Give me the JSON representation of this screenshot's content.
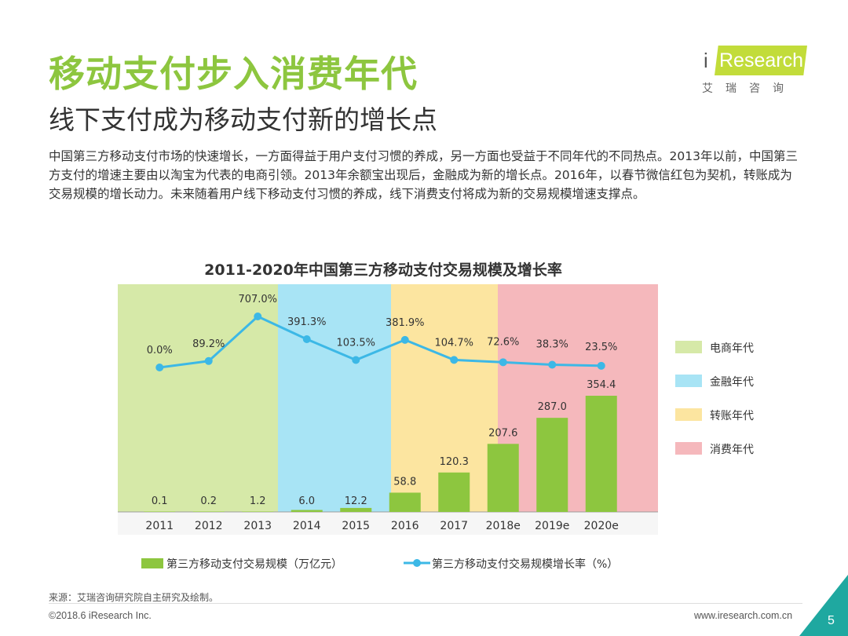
{
  "header": {
    "title": "移动支付步入消费年代",
    "subtitle": "线下支付成为移动支付新的增长点",
    "logo": {
      "brand": "Research",
      "brand_i": "i",
      "chinese": "艾瑞咨询",
      "color": "#c2dc3a"
    }
  },
  "intro_text": "中国第三方移动支付市场的快速增长，一方面得益于用户支付习惯的养成，另一方面也受益于不同年代的不同热点。2013年以前，中国第三方支付的增速主要由以淘宝为代表的电商引领。2013年余额宝出现后，金融成为新的增长点。2016年，以春节微信红包为契机，转账成为交易规模的增长动力。未来随着用户线下移动支付习惯的养成，线下消费支付将成为新的交易规模增速支撑点。",
  "chart_data": {
    "type": "bar",
    "title": "2011-2020年中国第三方移动支付交易规模及增长率",
    "categories": [
      "2011",
      "2012",
      "2013",
      "2014",
      "2015",
      "2016",
      "2017",
      "2018e",
      "2019e",
      "2020e"
    ],
    "series": [
      {
        "name": "第三方移动支付交易规模（万亿元）",
        "type": "bar",
        "color": "#8dc63f",
        "values": [
          0.1,
          0.2,
          1.2,
          6.0,
          12.2,
          58.8,
          120.3,
          207.6,
          287.0,
          354.4
        ],
        "labels": [
          "0.1",
          "0.2",
          "1.2",
          "6.0",
          "12.2",
          "58.8",
          "120.3",
          "207.6",
          "287.0",
          "354.4"
        ]
      },
      {
        "name": "第三方移动支付交易规模增长率（%）",
        "type": "line",
        "color": "#3cb8e6",
        "values": [
          0.0,
          89.2,
          707.0,
          391.3,
          103.5,
          381.9,
          104.7,
          72.6,
          38.3,
          23.5
        ],
        "labels": [
          "0.0%",
          "89.2%",
          "707.0%",
          "391.3%",
          "103.5%",
          "381.9%",
          "104.7%",
          "72.6%",
          "38.3%",
          "23.5%"
        ]
      }
    ],
    "eras": [
      {
        "name": "电商年代",
        "color": "#d6e9a8",
        "from_index": 0,
        "to_index": 2
      },
      {
        "name": "金融年代",
        "color": "#a8e4f5",
        "from_index": 2,
        "to_index": 4
      },
      {
        "name": "转账年代",
        "color": "#fce5a0",
        "from_index": 4,
        "to_index": 6
      },
      {
        "name": "消费年代",
        "color": "#f5b8bc",
        "from_index": 7,
        "to_index": 9
      }
    ],
    "legend_position": "bottom (series), right (eras)",
    "grid": false
  },
  "footer": {
    "source": "来源：艾瑞咨询研究院自主研究及绘制。",
    "copyright": "©2018.6 iResearch Inc.",
    "website": "www.iresearch.com.cn",
    "page_number": "5"
  }
}
